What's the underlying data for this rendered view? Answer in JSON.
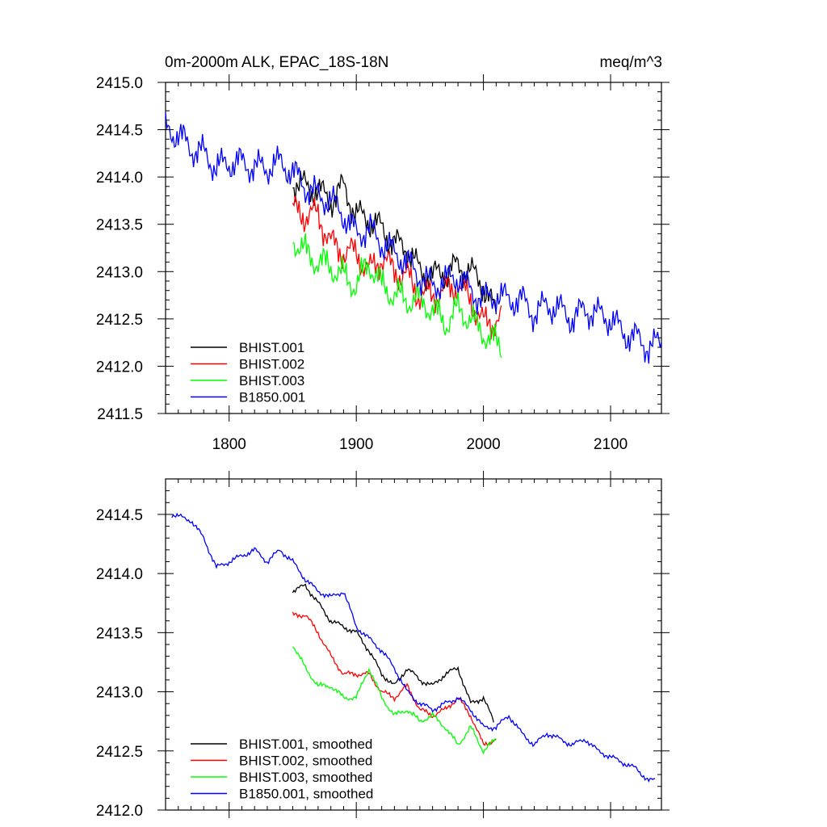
{
  "chart_data": [
    {
      "type": "line",
      "title": "0m-2000m ALK, EPAC_18S-18N",
      "units": "meq/m^3",
      "xlim": [
        1750,
        2140
      ],
      "ylim": [
        2411.5,
        2415.0
      ],
      "x_ticks": [
        1800,
        1900,
        2000,
        2100
      ],
      "x_tick_labels": [
        "1800",
        "1900",
        "2000",
        "2100"
      ],
      "y_ticks": [
        2411.5,
        2412.0,
        2412.5,
        2413.0,
        2413.5,
        2414.0,
        2414.5,
        2415.0
      ],
      "y_tick_labels": [
        "2411.5",
        "2412.0",
        "2412.5",
        "2413.0",
        "2413.5",
        "2414.0",
        "2414.5",
        "2415.0"
      ],
      "legend_position": "bottom-left",
      "series": [
        {
          "name": "BHIST.001",
          "color": "#000000",
          "x": [
            1850,
            1870,
            1880,
            1890,
            1900,
            1910,
            1920,
            1930,
            1940,
            1950,
            1960,
            1970,
            1980,
            1990,
            2000,
            2010
          ],
          "y": [
            2413.95,
            2413.85,
            2413.75,
            2413.9,
            2413.6,
            2413.55,
            2413.45,
            2413.3,
            2413.25,
            2413.0,
            2412.95,
            2413.0,
            2413.05,
            2413.0,
            2412.85,
            2412.55
          ]
        },
        {
          "name": "BHIST.002",
          "color": "#ff0000",
          "x": [
            1850,
            1860,
            1870,
            1880,
            1890,
            1900,
            1910,
            1920,
            1930,
            1940,
            1950,
            1960,
            1970,
            1980,
            1990,
            2000,
            2014
          ],
          "y": [
            2413.65,
            2413.6,
            2413.6,
            2413.3,
            2413.2,
            2413.2,
            2413.0,
            2413.15,
            2413.0,
            2412.95,
            2412.75,
            2412.75,
            2412.8,
            2412.85,
            2412.7,
            2412.45,
            2412.5
          ]
        },
        {
          "name": "BHIST.003",
          "color": "#00ff00",
          "x": [
            1850,
            1860,
            1870,
            1880,
            1890,
            1900,
            1910,
            1920,
            1930,
            1940,
            1950,
            1960,
            1970,
            1980,
            1990,
            2000,
            2014
          ],
          "y": [
            2413.35,
            2413.2,
            2413.1,
            2413.05,
            2412.95,
            2412.85,
            2413.1,
            2412.85,
            2412.75,
            2412.7,
            2412.7,
            2412.6,
            2412.45,
            2412.6,
            2412.5,
            2412.35,
            2412.2
          ]
        },
        {
          "name": "B1850.001",
          "color": "#0000ff",
          "x": [
            1750,
            1760,
            1770,
            1780,
            1790,
            1800,
            1810,
            1820,
            1830,
            1840,
            1850,
            1860,
            1870,
            1880,
            1890,
            1900,
            1910,
            1920,
            1930,
            1940,
            1950,
            1960,
            1970,
            1980,
            1990,
            2000,
            2010,
            2020,
            2030,
            2040,
            2050,
            2060,
            2070,
            2080,
            2090,
            2100,
            2110,
            2120,
            2130,
            2140
          ],
          "y": [
            2414.5,
            2414.45,
            2414.3,
            2414.25,
            2414.1,
            2414.15,
            2414.15,
            2414.1,
            2414.1,
            2414.15,
            2414.05,
            2413.9,
            2413.8,
            2413.75,
            2413.6,
            2413.4,
            2413.45,
            2413.3,
            2413.2,
            2413.1,
            2412.95,
            2412.85,
            2412.9,
            2412.95,
            2412.8,
            2412.7,
            2412.75,
            2412.7,
            2412.7,
            2412.55,
            2412.65,
            2412.6,
            2412.5,
            2412.6,
            2412.55,
            2412.5,
            2412.35,
            2412.3,
            2412.2,
            2412.25
          ]
        }
      ]
    },
    {
      "type": "line",
      "xlim": [
        1750,
        2140
      ],
      "ylim": [
        2412.0,
        2414.8
      ],
      "x_ticks": [
        1800,
        1900,
        2000,
        2100
      ],
      "y_ticks": [
        2412.0,
        2412.5,
        2413.0,
        2413.5,
        2414.0,
        2414.5
      ],
      "y_tick_labels": [
        "2412.0",
        "2412.5",
        "2413.0",
        "2413.5",
        "2414.0",
        "2414.5"
      ],
      "legend_position": "bottom-left",
      "series": [
        {
          "name": "BHIST.001, smoothed",
          "color": "#000000",
          "x": [
            1850,
            1860,
            1870,
            1880,
            1890,
            1900,
            1910,
            1920,
            1930,
            1940,
            1950,
            1960,
            1970,
            1980,
            1990,
            2000,
            2008
          ],
          "y": [
            2413.85,
            2413.9,
            2413.75,
            2413.6,
            2413.55,
            2413.5,
            2413.35,
            2413.15,
            2413.05,
            2413.2,
            2413.1,
            2413.05,
            2413.15,
            2413.2,
            2412.9,
            2412.95,
            2412.75
          ]
        },
        {
          "name": "BHIST.002, smoothed",
          "color": "#ff0000",
          "x": [
            1850,
            1860,
            1870,
            1880,
            1890,
            1900,
            1910,
            1920,
            1930,
            1940,
            1950,
            1960,
            1970,
            1980,
            1990,
            2000,
            2010
          ],
          "y": [
            2413.65,
            2413.65,
            2413.5,
            2413.3,
            2413.15,
            2413.15,
            2413.15,
            2413.0,
            2412.95,
            2413.05,
            2412.85,
            2412.8,
            2412.85,
            2412.95,
            2412.8,
            2412.55,
            2412.6
          ]
        },
        {
          "name": "BHIST.003, smoothed",
          "color": "#00ff00",
          "x": [
            1850,
            1860,
            1870,
            1880,
            1890,
            1900,
            1910,
            1920,
            1930,
            1940,
            1950,
            1960,
            1970,
            1980,
            1990,
            2000,
            2010
          ],
          "y": [
            2413.4,
            2413.2,
            2413.05,
            2413.05,
            2412.95,
            2412.95,
            2413.2,
            2412.95,
            2412.8,
            2412.85,
            2412.75,
            2412.8,
            2412.7,
            2412.55,
            2412.7,
            2412.5,
            2412.6
          ]
        },
        {
          "name": "B1850.001, smoothed",
          "color": "#0000ff",
          "x": [
            1755,
            1770,
            1780,
            1790,
            1800,
            1810,
            1820,
            1830,
            1840,
            1850,
            1860,
            1870,
            1880,
            1890,
            1900,
            1910,
            1920,
            1930,
            1940,
            1950,
            1960,
            1970,
            1980,
            1990,
            2000,
            2010,
            2020,
            2030,
            2040,
            2050,
            2060,
            2070,
            2080,
            2090,
            2100,
            2110,
            2120,
            2130,
            2135
          ],
          "y": [
            2414.5,
            2414.45,
            2414.3,
            2414.05,
            2414.1,
            2414.15,
            2414.2,
            2414.1,
            2414.2,
            2414.1,
            2413.95,
            2413.85,
            2413.8,
            2413.85,
            2413.55,
            2413.45,
            2413.35,
            2413.2,
            2413.0,
            2412.9,
            2412.85,
            2412.9,
            2412.95,
            2412.85,
            2412.7,
            2412.7,
            2412.8,
            2412.65,
            2412.55,
            2412.65,
            2412.6,
            2412.55,
            2412.6,
            2412.5,
            2412.45,
            2412.4,
            2412.35,
            2412.25,
            2412.25
          ]
        }
      ]
    }
  ]
}
